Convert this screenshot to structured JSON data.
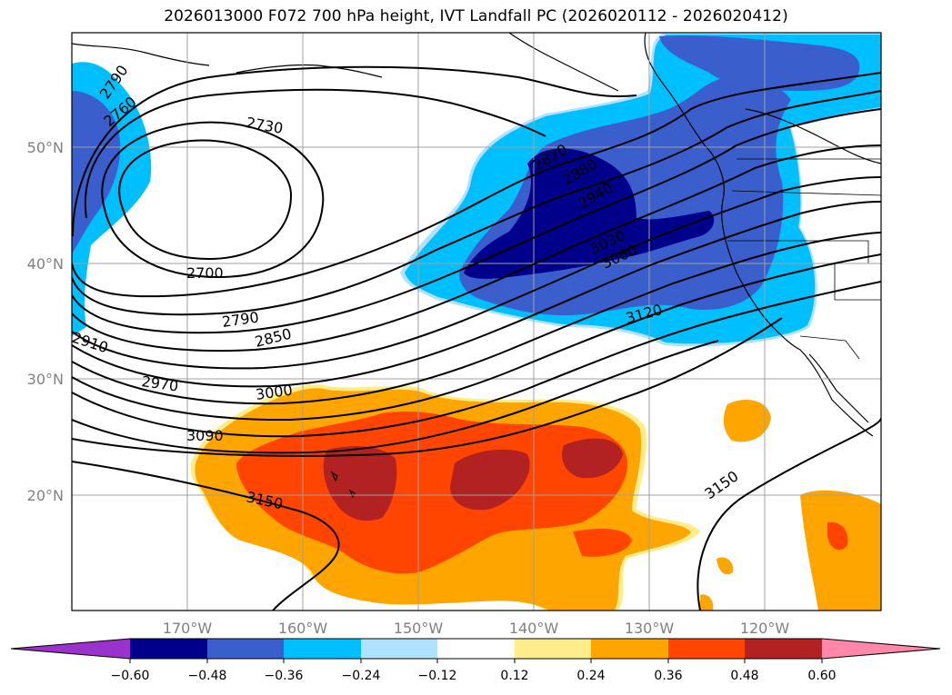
{
  "title": "2026013000 F072 700 hPa height, IVT Landfall PC (2026020112 - 2026020412)",
  "map": {
    "lon_labels": [
      "170°W",
      "160°W",
      "150°W",
      "140°W",
      "130°W",
      "120°W"
    ],
    "lat_labels": [
      "50°N",
      "40°N",
      "30°N",
      "20°N"
    ],
    "contour_labels": [
      "2790",
      "2760",
      "2730",
      "2700",
      "2790",
      "2850",
      "2910",
      "2970",
      "3000",
      "3090",
      "3150",
      "2820",
      "2880",
      "2940",
      "3030",
      "3060",
      "3120",
      "3150"
    ]
  },
  "colorbar": {
    "ticks": [
      "−0.60",
      "−0.48",
      "−0.36",
      "−0.24",
      "−0.12",
      "0.12",
      "0.24",
      "0.36",
      "0.48",
      "0.60"
    ],
    "colors": [
      "#9933cc",
      "#00008b",
      "#3a5fcd",
      "#00bfff",
      "#b0e2ff",
      "#ffffff",
      "#ffec8b",
      "#ffa500",
      "#ff4500",
      "#b22222",
      "#ff88aa"
    ]
  }
}
